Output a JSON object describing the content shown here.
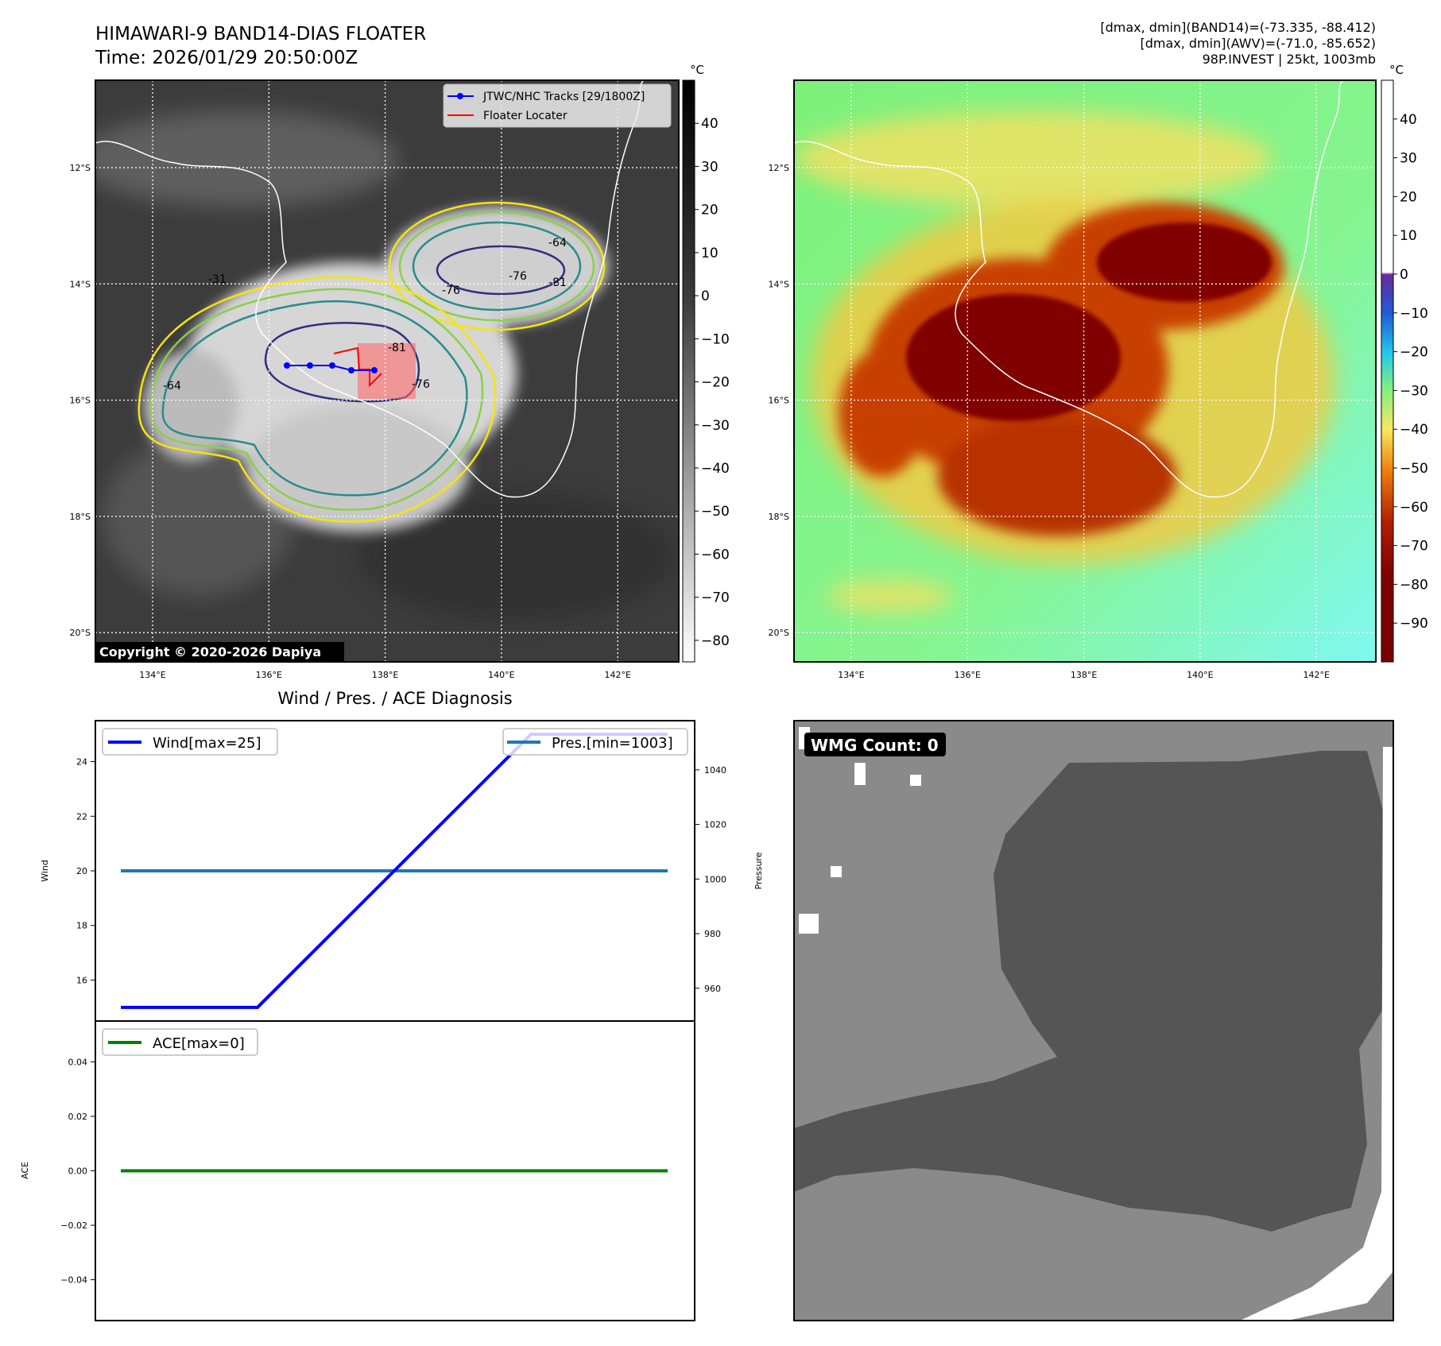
{
  "header": {
    "title": "HIMAWARI-9 BAND14-DIAS FLOATER",
    "time": "Time: 2026/01/29 20:50:00Z",
    "info_line1": "[dmax, dmin](BAND14)=(-73.335, -88.412)",
    "info_line2": "[dmax, dmin](AWV)=(-71.0, -85.652)",
    "info_line3": "98P.INVEST | 25kt, 1003mb"
  },
  "maps": {
    "lat_labels": [
      "12°S",
      "14°S",
      "16°S",
      "18°S",
      "20°S"
    ],
    "lon_labels": [
      "134°E",
      "136°E",
      "138°E",
      "140°E",
      "142°E"
    ],
    "legend": {
      "track": "JTWC/NHC Tracks [29/1800Z]",
      "floater": "Floater Locater"
    },
    "copyright": "Copyright © 2020-2026 Dapiya",
    "contour_labels": [
      "-31",
      "-64",
      "-76",
      "-81",
      "-76",
      "-81",
      "-64",
      "-76"
    ],
    "colors": {
      "track": "#0000ff",
      "floater": "#ff0000",
      "contour_yellow": "#f5e50a",
      "contour_green": "#8ad04a",
      "contour_teal": "#2a8c8c",
      "contour_navy": "#2f2f80"
    }
  },
  "colorbar_gray": {
    "unit": "°C",
    "ticks": [
      "40",
      "30",
      "20",
      "10",
      "0",
      "−10",
      "−20",
      "−30",
      "−40",
      "−50",
      "−60",
      "−70",
      "−80"
    ],
    "values": [
      40,
      30,
      20,
      10,
      0,
      -10,
      -20,
      -30,
      -40,
      -50,
      -60,
      -70,
      -80
    ],
    "range": [
      -85,
      50
    ]
  },
  "colorbar_color": {
    "unit": "°C",
    "ticks": [
      "40",
      "30",
      "20",
      "10",
      "0",
      "−10",
      "−20",
      "−30",
      "−40",
      "−50",
      "−60",
      "−70",
      "−80",
      "−90"
    ],
    "values": [
      40,
      30,
      20,
      10,
      0,
      -10,
      -20,
      -30,
      -40,
      -50,
      -60,
      -70,
      -80,
      -90
    ],
    "range": [
      -100,
      50
    ]
  },
  "chart_data": [
    {
      "type": "line",
      "title": "Wind / Pres. / ACE Diagnosis",
      "x": [
        0,
        1,
        2,
        3,
        4
      ],
      "series": [
        {
          "name": "Wind[max=25]",
          "axis": "left",
          "color": "#0000ff",
          "values": [
            15,
            15,
            20,
            25,
            25
          ]
        },
        {
          "name": "Pres.[min=1003]",
          "axis": "right",
          "color": "#1f77b4",
          "values": [
            1003,
            1003,
            1003,
            1003,
            1003
          ]
        }
      ],
      "ylabel": "Wind",
      "ylabel_right": "Pressure",
      "ylim": [
        14.5,
        25.5
      ],
      "ylim_right": [
        948,
        1058
      ],
      "yticks": [
        "16",
        "18",
        "20",
        "22",
        "24"
      ],
      "ytick_values": [
        16,
        18,
        20,
        22,
        24
      ],
      "yticks_right": [
        "960",
        "980",
        "1000",
        "1020",
        "1040"
      ],
      "ytick_values_right": [
        960,
        980,
        1000,
        1020,
        1040
      ]
    },
    {
      "type": "line",
      "x": [
        0,
        1,
        2,
        3,
        4
      ],
      "series": [
        {
          "name": "ACE[max=0]",
          "color": "#008000",
          "values": [
            0,
            0,
            0,
            0,
            0
          ]
        }
      ],
      "ylabel": "ACE",
      "ylim": [
        -0.055,
        0.055
      ],
      "yticks": [
        "0.04",
        "0.02",
        "0.00",
        "−0.02",
        "−0.04"
      ],
      "ytick_values": [
        0.04,
        0.02,
        0,
        -0.02,
        -0.04
      ]
    }
  ],
  "wmg": {
    "label": "WMG Count: 0",
    "colors": {
      "light": "#8a8a8a",
      "dark": "#555555"
    }
  }
}
